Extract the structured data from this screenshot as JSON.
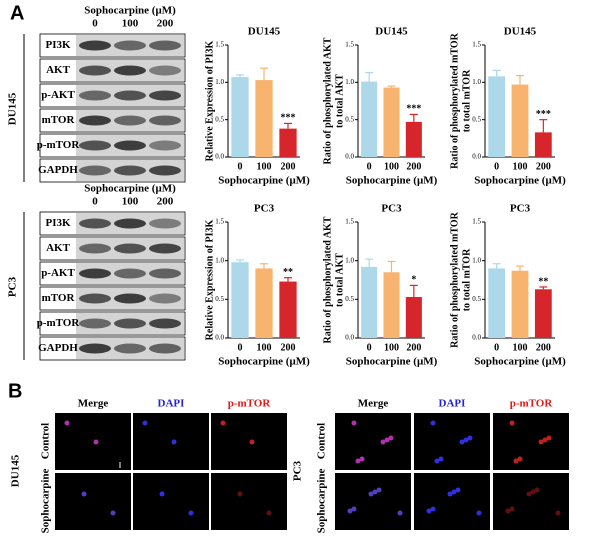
{
  "panel_a": {
    "label": "A",
    "blots": [
      {
        "cell_line": "DU145",
        "header": "Sophocarpine (μM)",
        "doses": [
          "0",
          "100",
          "200"
        ],
        "proteins": [
          "PI3K",
          "AKT",
          "p-AKT",
          "mTOR",
          "p-mTOR",
          "GAPDH"
        ]
      },
      {
        "cell_line": "PC3",
        "header": "Sophocarpine (μM)",
        "doses": [
          "0",
          "100",
          "200"
        ],
        "proteins": [
          "PI3K",
          "AKT",
          "p-AKT",
          "mTOR",
          "p-mTOR",
          "GAPDH"
        ]
      }
    ]
  },
  "chart_data": [
    {
      "type": "bar",
      "title": "DU145",
      "y_label": [
        "Relative Expression of PI3K"
      ],
      "x_label": "Sophocarpine (μM)",
      "categories": [
        "0",
        "100",
        "200"
      ],
      "values": [
        1.07,
        1.03,
        0.38
      ],
      "errors": [
        0.03,
        0.16,
        0.07
      ],
      "significance": "***",
      "colors": [
        "#acd8ea",
        "#f8b46e",
        "#d7262b"
      ],
      "ylim": [
        0,
        1.5
      ],
      "yticks": [
        {
          "value": 0,
          "label": "0.0"
        },
        {
          "value": 0.5,
          "label": "0.5"
        },
        {
          "value": 1,
          "label": "1.0"
        },
        {
          "value": 1.5,
          "label": "1.5"
        }
      ]
    },
    {
      "type": "bar",
      "title": "DU145",
      "y_label": [
        "Ratio of phosphorylated AKT",
        "to total AKT"
      ],
      "x_label": "Sophocarpine (μM)",
      "categories": [
        "0",
        "100",
        "200"
      ],
      "values": [
        1.01,
        0.93,
        0.47
      ],
      "errors": [
        0.12,
        0.02,
        0.1
      ],
      "significance": "***",
      "colors": [
        "#acd8ea",
        "#f8b46e",
        "#d7262b"
      ],
      "ylim": [
        0,
        1.5
      ],
      "yticks": [
        {
          "value": 0,
          "label": "0.0"
        },
        {
          "value": 0.5,
          "label": "0.5"
        },
        {
          "value": 1,
          "label": "1.0"
        },
        {
          "value": 1.5,
          "label": "1.5"
        }
      ]
    },
    {
      "type": "bar",
      "title": "DU145",
      "y_label": [
        "Ratio of phosphorylated mTOR",
        "to total mTOR"
      ],
      "x_label": "Sophocarpine (μM)",
      "categories": [
        "0",
        "100",
        "200"
      ],
      "values": [
        1.08,
        0.97,
        0.33
      ],
      "errors": [
        0.08,
        0.12,
        0.17
      ],
      "significance": "***",
      "colors": [
        "#acd8ea",
        "#f8b46e",
        "#d7262b"
      ],
      "ylim": [
        0,
        1.5
      ],
      "yticks": [
        {
          "value": 0,
          "label": "0.0"
        },
        {
          "value": 0.5,
          "label": "0.5"
        },
        {
          "value": 1,
          "label": "1.0"
        },
        {
          "value": 1.5,
          "label": "1.5"
        }
      ]
    },
    {
      "type": "bar",
      "title": "PC3",
      "y_label": [
        "Relative Expression of PI3K"
      ],
      "x_label": "Sophocarpine (μM)",
      "categories": [
        "0",
        "100",
        "200"
      ],
      "values": [
        0.98,
        0.9,
        0.73
      ],
      "errors": [
        0.03,
        0.06,
        0.05
      ],
      "significance": "**",
      "colors": [
        "#acd8ea",
        "#f8b46e",
        "#d7262b"
      ],
      "ylim": [
        0,
        1.5
      ],
      "yticks": [
        {
          "value": 0,
          "label": "0.0"
        },
        {
          "value": 0.5,
          "label": "0.5"
        },
        {
          "value": 1,
          "label": "1.0"
        },
        {
          "value": 1.5,
          "label": "1.5"
        }
      ]
    },
    {
      "type": "bar",
      "title": "PC3",
      "y_label": [
        "Ratio of phosphorylated AKT",
        "to total AKT"
      ],
      "x_label": "Sophocarpine (μM)",
      "categories": [
        "0",
        "100",
        "200"
      ],
      "values": [
        0.92,
        0.85,
        0.53
      ],
      "errors": [
        0.1,
        0.14,
        0.15
      ],
      "significance": "*",
      "colors": [
        "#acd8ea",
        "#f8b46e",
        "#d7262b"
      ],
      "ylim": [
        0,
        1.5
      ],
      "yticks": [
        {
          "value": 0,
          "label": "0.0"
        },
        {
          "value": 0.5,
          "label": "0.5"
        },
        {
          "value": 1,
          "label": "1.0"
        },
        {
          "value": 1.5,
          "label": "1.5"
        }
      ]
    },
    {
      "type": "bar",
      "title": "PC3",
      "y_label": [
        "Ratio of phosphorylated mTOR",
        "to total mTOR"
      ],
      "x_label": "Sophocarpine (μM)",
      "categories": [
        "0",
        "100",
        "200"
      ],
      "values": [
        0.9,
        0.87,
        0.63
      ],
      "errors": [
        0.06,
        0.06,
        0.03
      ],
      "significance": "**",
      "colors": [
        "#acd8ea",
        "#f8b46e",
        "#d7262b"
      ],
      "ylim": [
        0,
        1.5
      ],
      "yticks": [
        {
          "value": 0,
          "label": "0.0"
        },
        {
          "value": 0.5,
          "label": "0.5"
        },
        {
          "value": 1,
          "label": "1.0"
        },
        {
          "value": 1.5,
          "label": "1.5"
        }
      ]
    }
  ],
  "panel_b": {
    "label": "B",
    "groups": [
      {
        "cell_line": "DU145",
        "columns": [
          "Merge",
          "DAPI",
          "p-mTOR"
        ],
        "rows": [
          "Control",
          "Sophocarpine"
        ]
      },
      {
        "cell_line": "PC3",
        "columns": [
          "Merge",
          "DAPI",
          "p-mTOR"
        ],
        "rows": [
          "Control",
          "Sophocarpine"
        ]
      }
    ]
  }
}
